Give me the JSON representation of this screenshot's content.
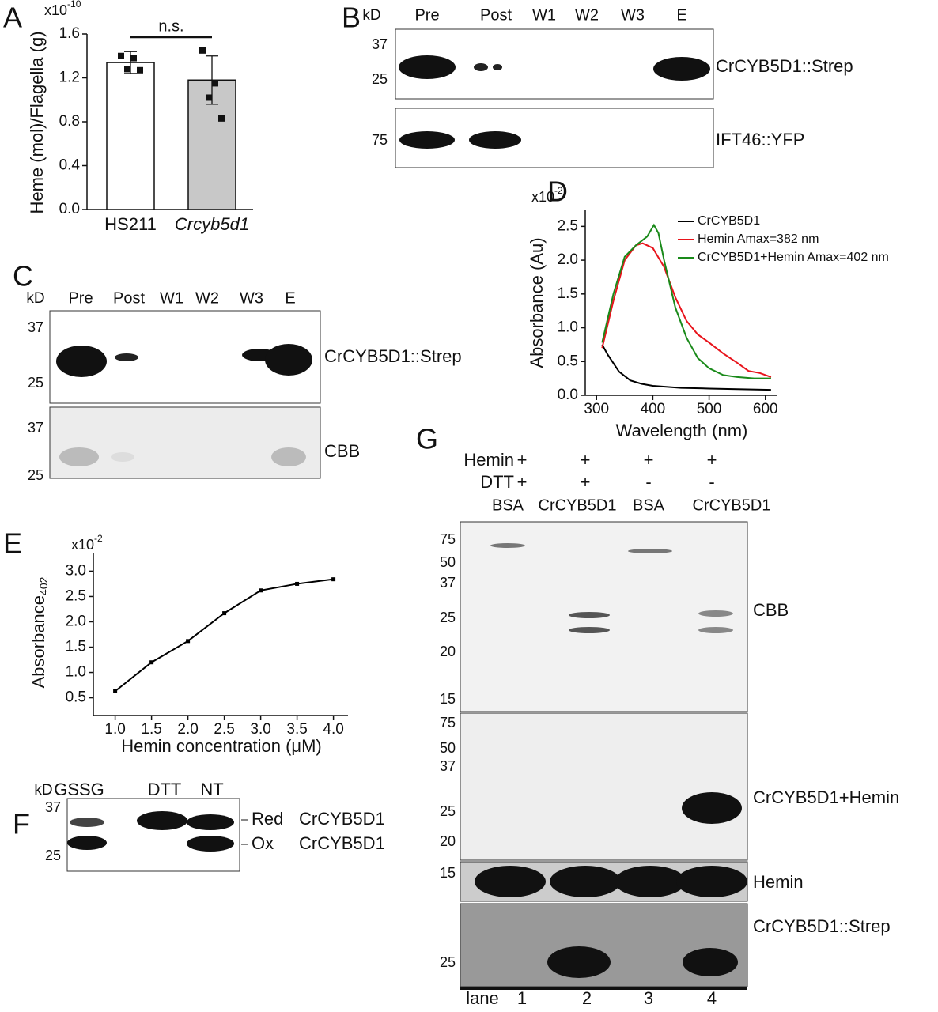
{
  "chart_data": [
    {
      "panel": "A",
      "type": "bar",
      "y_label": "Heme (mol)/Flagella (g)",
      "y_multiplier": "x10",
      "y_multiplier_exp": "-10",
      "categories": [
        "HS211",
        "Crcyb5d1"
      ],
      "values": [
        1.34,
        1.18
      ],
      "errors": [
        0.1,
        0.22
      ],
      "points": [
        [
          1.4,
          1.38,
          1.28,
          1.27
        ],
        [
          1.45,
          1.15,
          1.02,
          0.83
        ]
      ],
      "colors": [
        "#ffffff",
        "#c8c8c8"
      ],
      "annotation": "n.s.",
      "ylim": [
        0,
        1.6
      ],
      "yticks": [
        {
          "value": 0,
          "label": "0.0"
        },
        0.4,
        0.8,
        1.2,
        1.6
      ]
    },
    {
      "panel": "D",
      "type": "line",
      "y_label": "Absorbance (Au)",
      "x_label": "Wavelength (nm)",
      "y_multiplier": "x10",
      "y_multiplier_exp": "-2",
      "series": [
        {
          "name": "CrCYB5D1",
          "color": "#000000",
          "x": [
            310,
            320,
            340,
            360,
            380,
            400,
            450,
            500,
            550,
            610
          ],
          "values": [
            0.75,
            0.6,
            0.35,
            0.22,
            0.17,
            0.14,
            0.11,
            0.1,
            0.09,
            0.08
          ]
        },
        {
          "name": "Hemin Amax=382 nm",
          "color": "#e8141c",
          "x": [
            310,
            330,
            350,
            370,
            382,
            400,
            420,
            440,
            460,
            480,
            500,
            525,
            550,
            570,
            590,
            610
          ],
          "values": [
            0.7,
            1.4,
            2.0,
            2.22,
            2.25,
            2.18,
            1.9,
            1.45,
            1.1,
            0.9,
            0.78,
            0.62,
            0.48,
            0.36,
            0.33,
            0.27
          ]
        },
        {
          "name": "CrCYB5D1+Hemin Amax=402 nm",
          "color": "#1a8a1a",
          "x": [
            310,
            330,
            350,
            370,
            390,
            402,
            410,
            420,
            440,
            460,
            480,
            500,
            525,
            550,
            580,
            610
          ],
          "values": [
            0.78,
            1.5,
            2.05,
            2.22,
            2.35,
            2.52,
            2.4,
            2.0,
            1.3,
            0.85,
            0.55,
            0.4,
            0.3,
            0.27,
            0.25,
            0.25
          ]
        }
      ],
      "xlim": [
        280,
        620
      ],
      "xticks": [
        300,
        400,
        500,
        600
      ],
      "ylim": [
        0,
        2.75
      ],
      "yticks": [
        {
          "value": 0,
          "label": "0.0"
        },
        0.5,
        {
          "value": 1,
          "label": "1.0"
        },
        1.5,
        {
          "value": 2,
          "label": "2.0"
        },
        2.5
      ]
    },
    {
      "panel": "E",
      "type": "line",
      "y_label": "Absorbance",
      "y_label_subscript": "402",
      "x_label": "Hemin concentration (μM)",
      "y_multiplier": "x10",
      "y_multiplier_exp": "-2",
      "series": [
        {
          "color": "#000000",
          "x": [
            1.0,
            1.5,
            2.0,
            2.5,
            3.0,
            3.5,
            4.0
          ],
          "values": [
            0.63,
            1.2,
            1.62,
            2.17,
            2.62,
            2.75,
            2.84
          ]
        }
      ],
      "xlim": [
        0.7,
        4.2
      ],
      "xticks": [
        {
          "value": 1,
          "label": "1.0"
        },
        1.5,
        {
          "value": 2,
          "label": "2.0"
        },
        2.5,
        {
          "value": 3,
          "label": "3.0"
        },
        3.5,
        {
          "value": 4,
          "label": "4.0"
        }
      ],
      "ylim": [
        0.15,
        3.35
      ],
      "yticks": [
        0.5,
        {
          "value": 1,
          "label": "1.0"
        },
        1.5,
        {
          "value": 2,
          "label": "2.0"
        },
        2.5,
        {
          "value": 3,
          "label": "3.0"
        }
      ]
    }
  ],
  "blots": {
    "B": {
      "panel": "B",
      "unit": "kD",
      "lanes": [
        "Pre",
        "Post",
        "W1",
        "W2",
        "W3",
        "E"
      ],
      "markers_top": [
        "37",
        "25"
      ],
      "markers_bottom": [
        "75"
      ],
      "rows": [
        "CrCYB5D1::Strep",
        "IFT46::YFP"
      ]
    },
    "C": {
      "panel": "C",
      "unit": "kD",
      "lanes": [
        "Pre",
        "Post",
        "W1",
        "W2",
        "W3",
        "E"
      ],
      "markers_top": [
        "37",
        "25"
      ],
      "markers_bottom": [
        "37",
        "25"
      ],
      "rows": [
        "CrCYB5D1::Strep",
        "CBB"
      ]
    },
    "F": {
      "panel": "F",
      "unit": "kD",
      "lanes": [
        "GSSG",
        "DTT",
        "NT"
      ],
      "markers": [
        "37",
        "25"
      ],
      "bands": [
        {
          "state": "Red",
          "protein": "CrCYB5D1"
        },
        {
          "state": "Ox",
          "protein": "CrCYB5D1"
        }
      ]
    },
    "G": {
      "panel": "G",
      "conditions": [
        {
          "name": "Hemin",
          "values": [
            "+",
            "+",
            "+",
            "+"
          ]
        },
        {
          "name": "DTT",
          "values": [
            "+",
            "+",
            "-",
            "-"
          ]
        }
      ],
      "samples": [
        "BSA",
        "CrCYB5D1",
        "BSA",
        "CrCYB5D1"
      ],
      "sections": [
        {
          "name": "CBB",
          "markers": [
            "75",
            "50",
            "37",
            "25",
            "20",
            "15"
          ]
        },
        {
          "name": "CrCYB5D1+Hemin",
          "markers": [
            "75",
            "50",
            "37",
            "25",
            "20"
          ]
        },
        {
          "name": "Hemin",
          "markers": [
            "15"
          ]
        },
        {
          "name": "CrCYB5D1::Strep",
          "markers": [
            "25"
          ]
        }
      ],
      "lane_title": "lane",
      "lanes": [
        "1",
        "2",
        "3",
        "4"
      ]
    }
  }
}
